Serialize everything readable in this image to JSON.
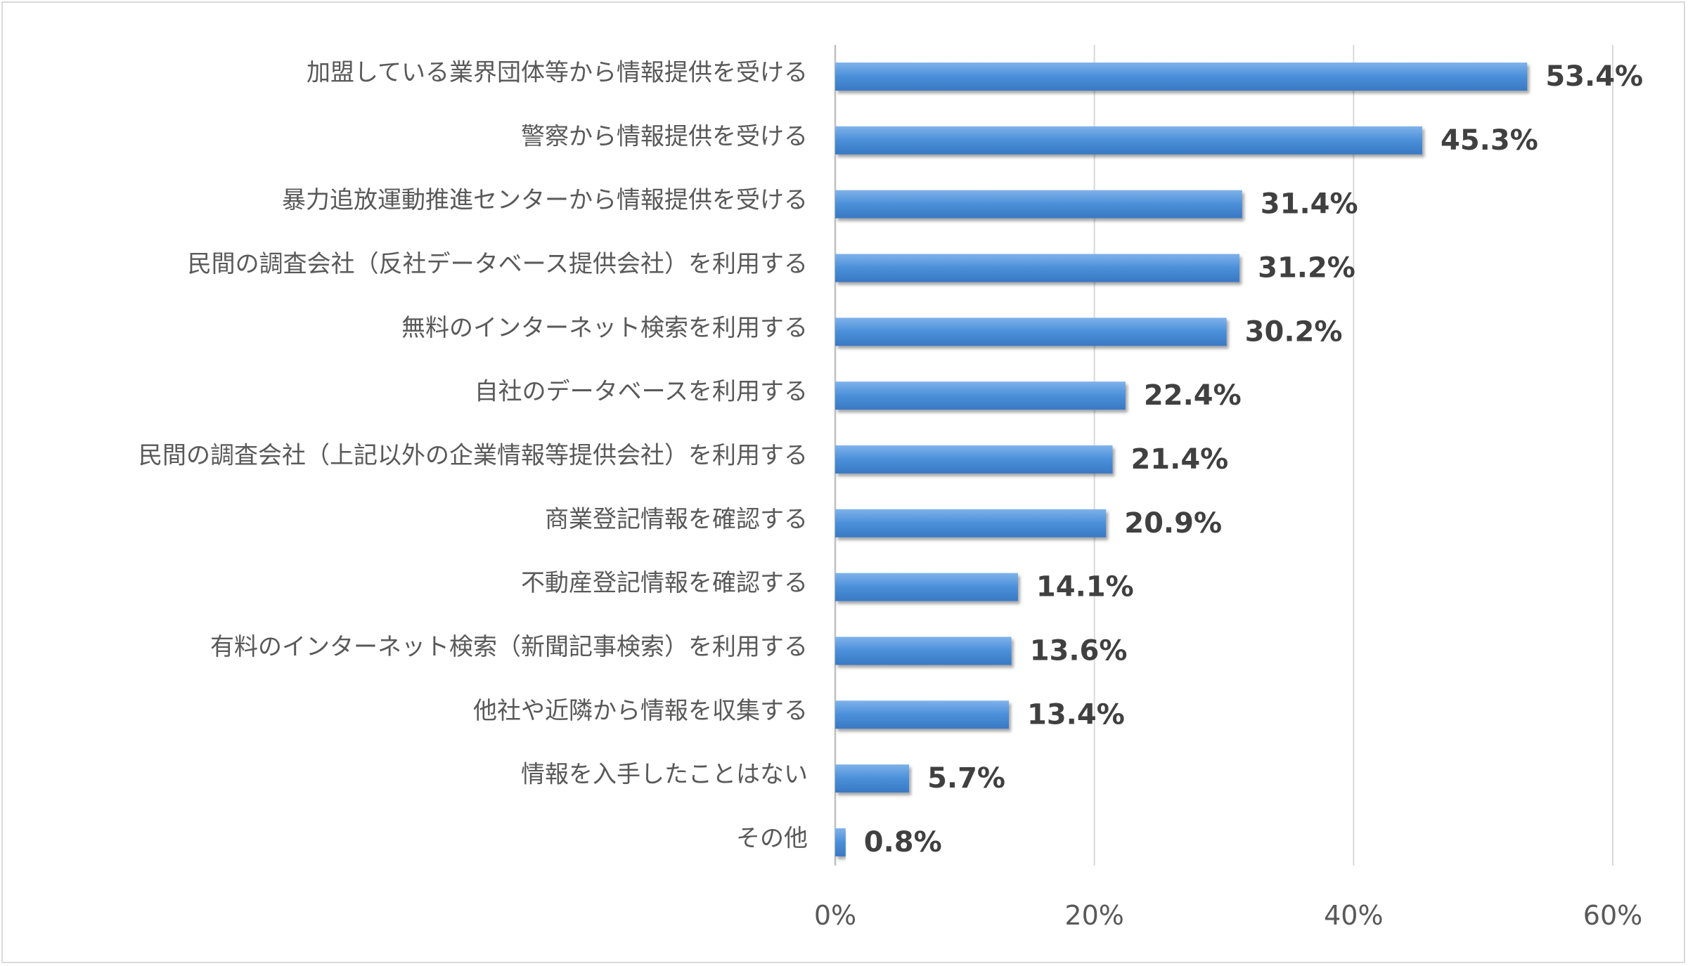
{
  "chart_data": {
    "type": "bar",
    "orientation": "horizontal",
    "categories": [
      "加盟している業界団体等から情報提供を受ける",
      "警察から情報提供を受ける",
      "暴力追放運動推進センターから情報提供を受ける",
      "民間の調査会社（反社データベース提供会社）を利用する",
      "無料のインターネット検索を利用する",
      "自社のデータベースを利用する",
      "民間の調査会社（上記以外の企業情報等提供会社）を利用する",
      "商業登記情報を確認する",
      "不動産登記情報を確認する",
      "有料のインターネット検索（新聞記事検索）を利用する",
      "他社や近隣から情報を収集する",
      "情報を入手したことはない",
      "その他"
    ],
    "values": [
      53.4,
      45.3,
      31.4,
      31.2,
      30.2,
      22.4,
      21.4,
      20.9,
      14.1,
      13.6,
      13.4,
      5.7,
      0.8
    ],
    "value_labels": [
      "53.4%",
      "45.3%",
      "31.4%",
      "31.2%",
      "30.2%",
      "22.4%",
      "21.4%",
      "20.9%",
      "14.1%",
      "13.6%",
      "13.4%",
      "5.7%",
      "0.8%"
    ],
    "xlim": [
      0,
      60
    ],
    "x_ticks": [
      0,
      20,
      40,
      60
    ],
    "x_tick_labels": [
      "0%",
      "20%",
      "40%",
      "60%"
    ],
    "title": "",
    "xlabel": "",
    "ylabel": "",
    "grid": "vertical",
    "legend": "none",
    "colors": {
      "bar": "#4a8fd9",
      "bar_light": "#7fb2ea",
      "bar_dark": "#3a78c2",
      "gridline": "#d9d9d9",
      "axis": "#bfbfbf"
    }
  }
}
